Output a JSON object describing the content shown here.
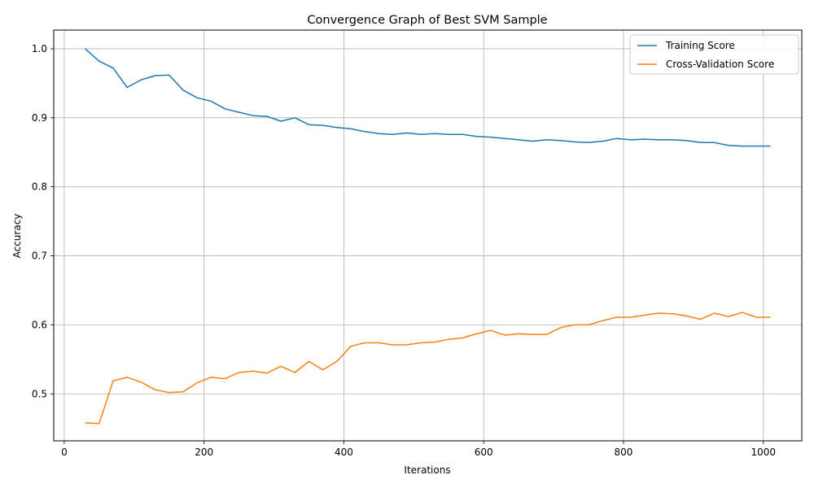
{
  "chart_data": {
    "type": "line",
    "title": "Convergence Graph of Best SVM Sample",
    "xlabel": "Iterations",
    "ylabel": "Accuracy",
    "xlim": [
      -15,
      1055
    ],
    "ylim": [
      0.432,
      1.027
    ],
    "xticks": [
      0,
      200,
      400,
      600,
      800,
      1000
    ],
    "yticks": [
      0.5,
      0.6,
      0.7,
      0.8,
      0.9,
      1.0
    ],
    "xtick_labels": [
      "0",
      "200",
      "400",
      "600",
      "800",
      "1000"
    ],
    "ytick_labels": [
      "0.5",
      "0.6",
      "0.7",
      "0.8",
      "0.9",
      "1.0"
    ],
    "grid": true,
    "legend_position": "top-right",
    "x": [
      30,
      50,
      70,
      90,
      110,
      130,
      150,
      170,
      190,
      210,
      230,
      250,
      270,
      290,
      310,
      330,
      350,
      370,
      390,
      410,
      430,
      450,
      470,
      490,
      510,
      530,
      550,
      570,
      590,
      610,
      630,
      650,
      670,
      690,
      710,
      730,
      750,
      770,
      790,
      810,
      830,
      850,
      870,
      890,
      910,
      930,
      950,
      970,
      990,
      1010
    ],
    "series": [
      {
        "name": "Training Score",
        "color": "#1f77b4",
        "values": [
          1.0,
          0.982,
          0.972,
          0.944,
          0.955,
          0.961,
          0.962,
          0.94,
          0.929,
          0.924,
          0.913,
          0.908,
          0.903,
          0.902,
          0.895,
          0.9,
          0.89,
          0.889,
          0.886,
          0.884,
          0.88,
          0.877,
          0.876,
          0.878,
          0.876,
          0.877,
          0.876,
          0.876,
          0.873,
          0.872,
          0.87,
          0.868,
          0.866,
          0.868,
          0.867,
          0.865,
          0.864,
          0.866,
          0.87,
          0.868,
          0.869,
          0.868,
          0.868,
          0.867,
          0.864,
          0.864,
          0.86,
          0.859,
          0.859,
          0.859
        ]
      },
      {
        "name": "Cross-Validation Score",
        "color": "#ff7f0e",
        "values": [
          0.458,
          0.457,
          0.519,
          0.524,
          0.517,
          0.506,
          0.502,
          0.503,
          0.516,
          0.524,
          0.522,
          0.531,
          0.533,
          0.53,
          0.54,
          0.531,
          0.547,
          0.535,
          0.547,
          0.569,
          0.574,
          0.574,
          0.571,
          0.571,
          0.574,
          0.575,
          0.579,
          0.581,
          0.587,
          0.592,
          0.585,
          0.587,
          0.586,
          0.586,
          0.596,
          0.6,
          0.6,
          0.606,
          0.611,
          0.611,
          0.614,
          0.617,
          0.616,
          0.613,
          0.608,
          0.617,
          0.612,
          0.618,
          0.611,
          0.611
        ]
      }
    ]
  }
}
